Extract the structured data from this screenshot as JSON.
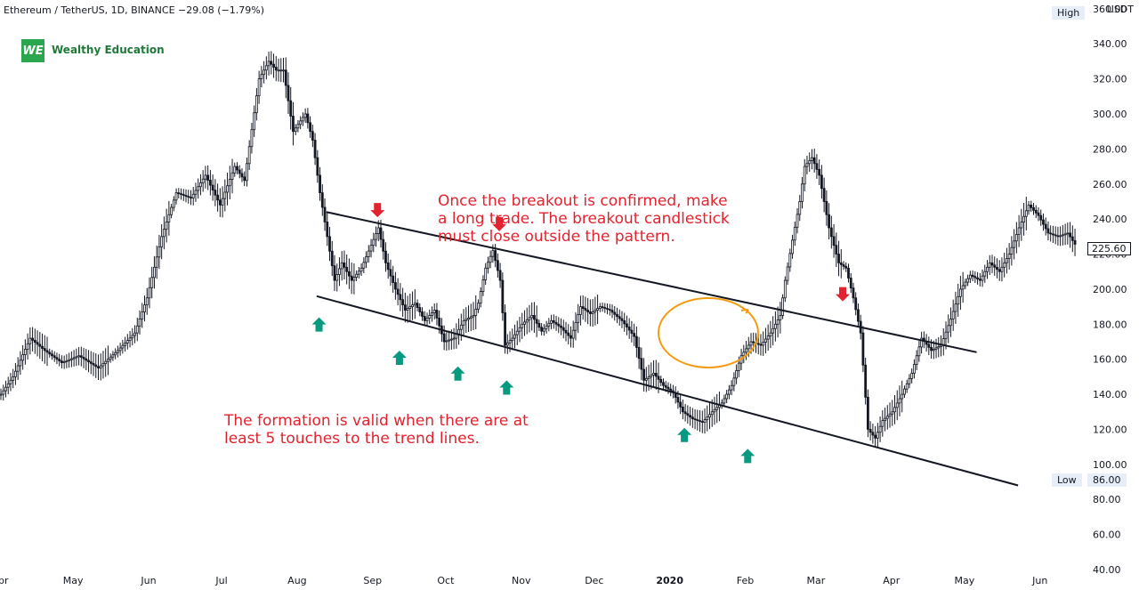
{
  "header": {
    "symbol": "Ethereum / TetherUS, 1D, BINANCE",
    "change": "−29.08 (−1.79%)"
  },
  "brand": {
    "logo": "WE",
    "name": "Wealthy Education"
  },
  "annotations": {
    "breakout": [
      "Once the breakout is confirmed, make",
      "a long trade. The breakout candlestick",
      "must close outside the pattern."
    ],
    "formation": [
      "The formation is valid when there are at",
      "least 5 touches to the trend lines."
    ]
  },
  "axis": {
    "currency": "USDT",
    "high_label": "High",
    "low_label": "Low",
    "low_value": "86.00",
    "last_price": "225.60"
  },
  "colors": {
    "up_arrow": "#089981",
    "down_arrow": "#e2232f",
    "circle": "#f39c12",
    "text_red": "#e2232f"
  },
  "chart_data": {
    "type": "line",
    "title": "",
    "xlabel": "",
    "ylabel": "USDT",
    "ylim": [
      40,
      365
    ],
    "x_ticks": [
      "Apr",
      "May",
      "Jun",
      "Jul",
      "Aug",
      "Sep",
      "Oct",
      "Nov",
      "Dec",
      "2020",
      "Feb",
      "Mar",
      "Apr",
      "May",
      "Jun"
    ],
    "y_ticks": [
      40,
      60,
      80,
      100,
      120,
      140,
      160,
      180,
      200,
      220,
      240,
      260,
      280,
      300,
      320,
      340,
      360
    ],
    "x_range_days": [
      0,
      445
    ],
    "series": [
      {
        "values": [
          [
            0,
            140
          ],
          [
            5,
            150
          ],
          [
            12,
            172
          ],
          [
            18,
            165
          ],
          [
            25,
            158
          ],
          [
            32,
            162
          ],
          [
            40,
            155
          ],
          [
            48,
            165
          ],
          [
            55,
            175
          ],
          [
            60,
            195
          ],
          [
            66,
            230
          ],
          [
            72,
            255
          ],
          [
            78,
            252
          ],
          [
            84,
            265
          ],
          [
            90,
            248
          ],
          [
            96,
            270
          ],
          [
            100,
            262
          ],
          [
            106,
            320
          ],
          [
            110,
            330
          ],
          [
            113,
            325
          ],
          [
            116,
            325
          ],
          [
            120,
            290
          ],
          [
            125,
            300
          ],
          [
            128,
            285
          ],
          [
            131,
            255
          ],
          [
            134,
            230
          ],
          [
            137,
            205
          ],
          [
            140,
            215
          ],
          [
            144,
            205
          ],
          [
            148,
            212
          ],
          [
            152,
            225
          ],
          [
            155,
            235
          ],
          [
            158,
            215
          ],
          [
            162,
            200
          ],
          [
            166,
            188
          ],
          [
            170,
            192
          ],
          [
            174,
            182
          ],
          [
            178,
            188
          ],
          [
            182,
            170
          ],
          [
            186,
            172
          ],
          [
            190,
            182
          ],
          [
            194,
            185
          ],
          [
            196,
            192
          ],
          [
            199,
            212
          ],
          [
            202,
            222
          ],
          [
            205,
            205
          ],
          [
            207,
            168
          ],
          [
            210,
            172
          ],
          [
            214,
            180
          ],
          [
            218,
            185
          ],
          [
            222,
            176
          ],
          [
            226,
            182
          ],
          [
            230,
            178
          ],
          [
            234,
            172
          ],
          [
            238,
            190
          ],
          [
            242,
            186
          ],
          [
            246,
            190
          ],
          [
            250,
            188
          ],
          [
            255,
            182
          ],
          [
            260,
            173
          ],
          [
            264,
            148
          ],
          [
            268,
            152
          ],
          [
            272,
            145
          ],
          [
            276,
            141
          ],
          [
            280,
            130
          ],
          [
            284,
            126
          ],
          [
            288,
            124
          ],
          [
            292,
            130
          ],
          [
            296,
            135
          ],
          [
            300,
            145
          ],
          [
            304,
            162
          ],
          [
            308,
            170
          ],
          [
            312,
            168
          ],
          [
            316,
            175
          ],
          [
            320,
            185
          ],
          [
            322,
            205
          ],
          [
            325,
            228
          ],
          [
            328,
            250
          ],
          [
            330,
            270
          ],
          [
            333,
            275
          ],
          [
            336,
            265
          ],
          [
            340,
            235
          ],
          [
            344,
            215
          ],
          [
            347,
            212
          ],
          [
            350,
            195
          ],
          [
            353,
            175
          ],
          [
            356,
            120
          ],
          [
            359,
            115
          ],
          [
            362,
            125
          ],
          [
            366,
            130
          ],
          [
            370,
            140
          ],
          [
            374,
            152
          ],
          [
            378,
            172
          ],
          [
            382,
            165
          ],
          [
            386,
            168
          ],
          [
            390,
            183
          ],
          [
            394,
            200
          ],
          [
            398,
            208
          ],
          [
            402,
            205
          ],
          [
            406,
            215
          ],
          [
            410,
            210
          ],
          [
            414,
            220
          ],
          [
            418,
            235
          ],
          [
            422,
            248
          ],
          [
            426,
            242
          ],
          [
            430,
            232
          ],
          [
            434,
            230
          ],
          [
            438,
            232
          ],
          [
            441,
            225.6
          ]
        ]
      }
    ],
    "trendlines": [
      {
        "name": "upper",
        "points": [
          [
            134,
            244
          ],
          [
            401,
            164
          ]
        ]
      },
      {
        "name": "lower",
        "points": [
          [
            130,
            196
          ],
          [
            418,
            88
          ]
        ]
      }
    ],
    "markers": {
      "resistance_touches": [
        [
          155,
          238
        ],
        [
          205,
          230
        ],
        [
          346,
          190
        ]
      ],
      "support_touches": [
        [
          131,
          191
        ],
        [
          164,
          172
        ],
        [
          188,
          163
        ],
        [
          208,
          155
        ],
        [
          281,
          128
        ],
        [
          307,
          116
        ]
      ]
    }
  }
}
